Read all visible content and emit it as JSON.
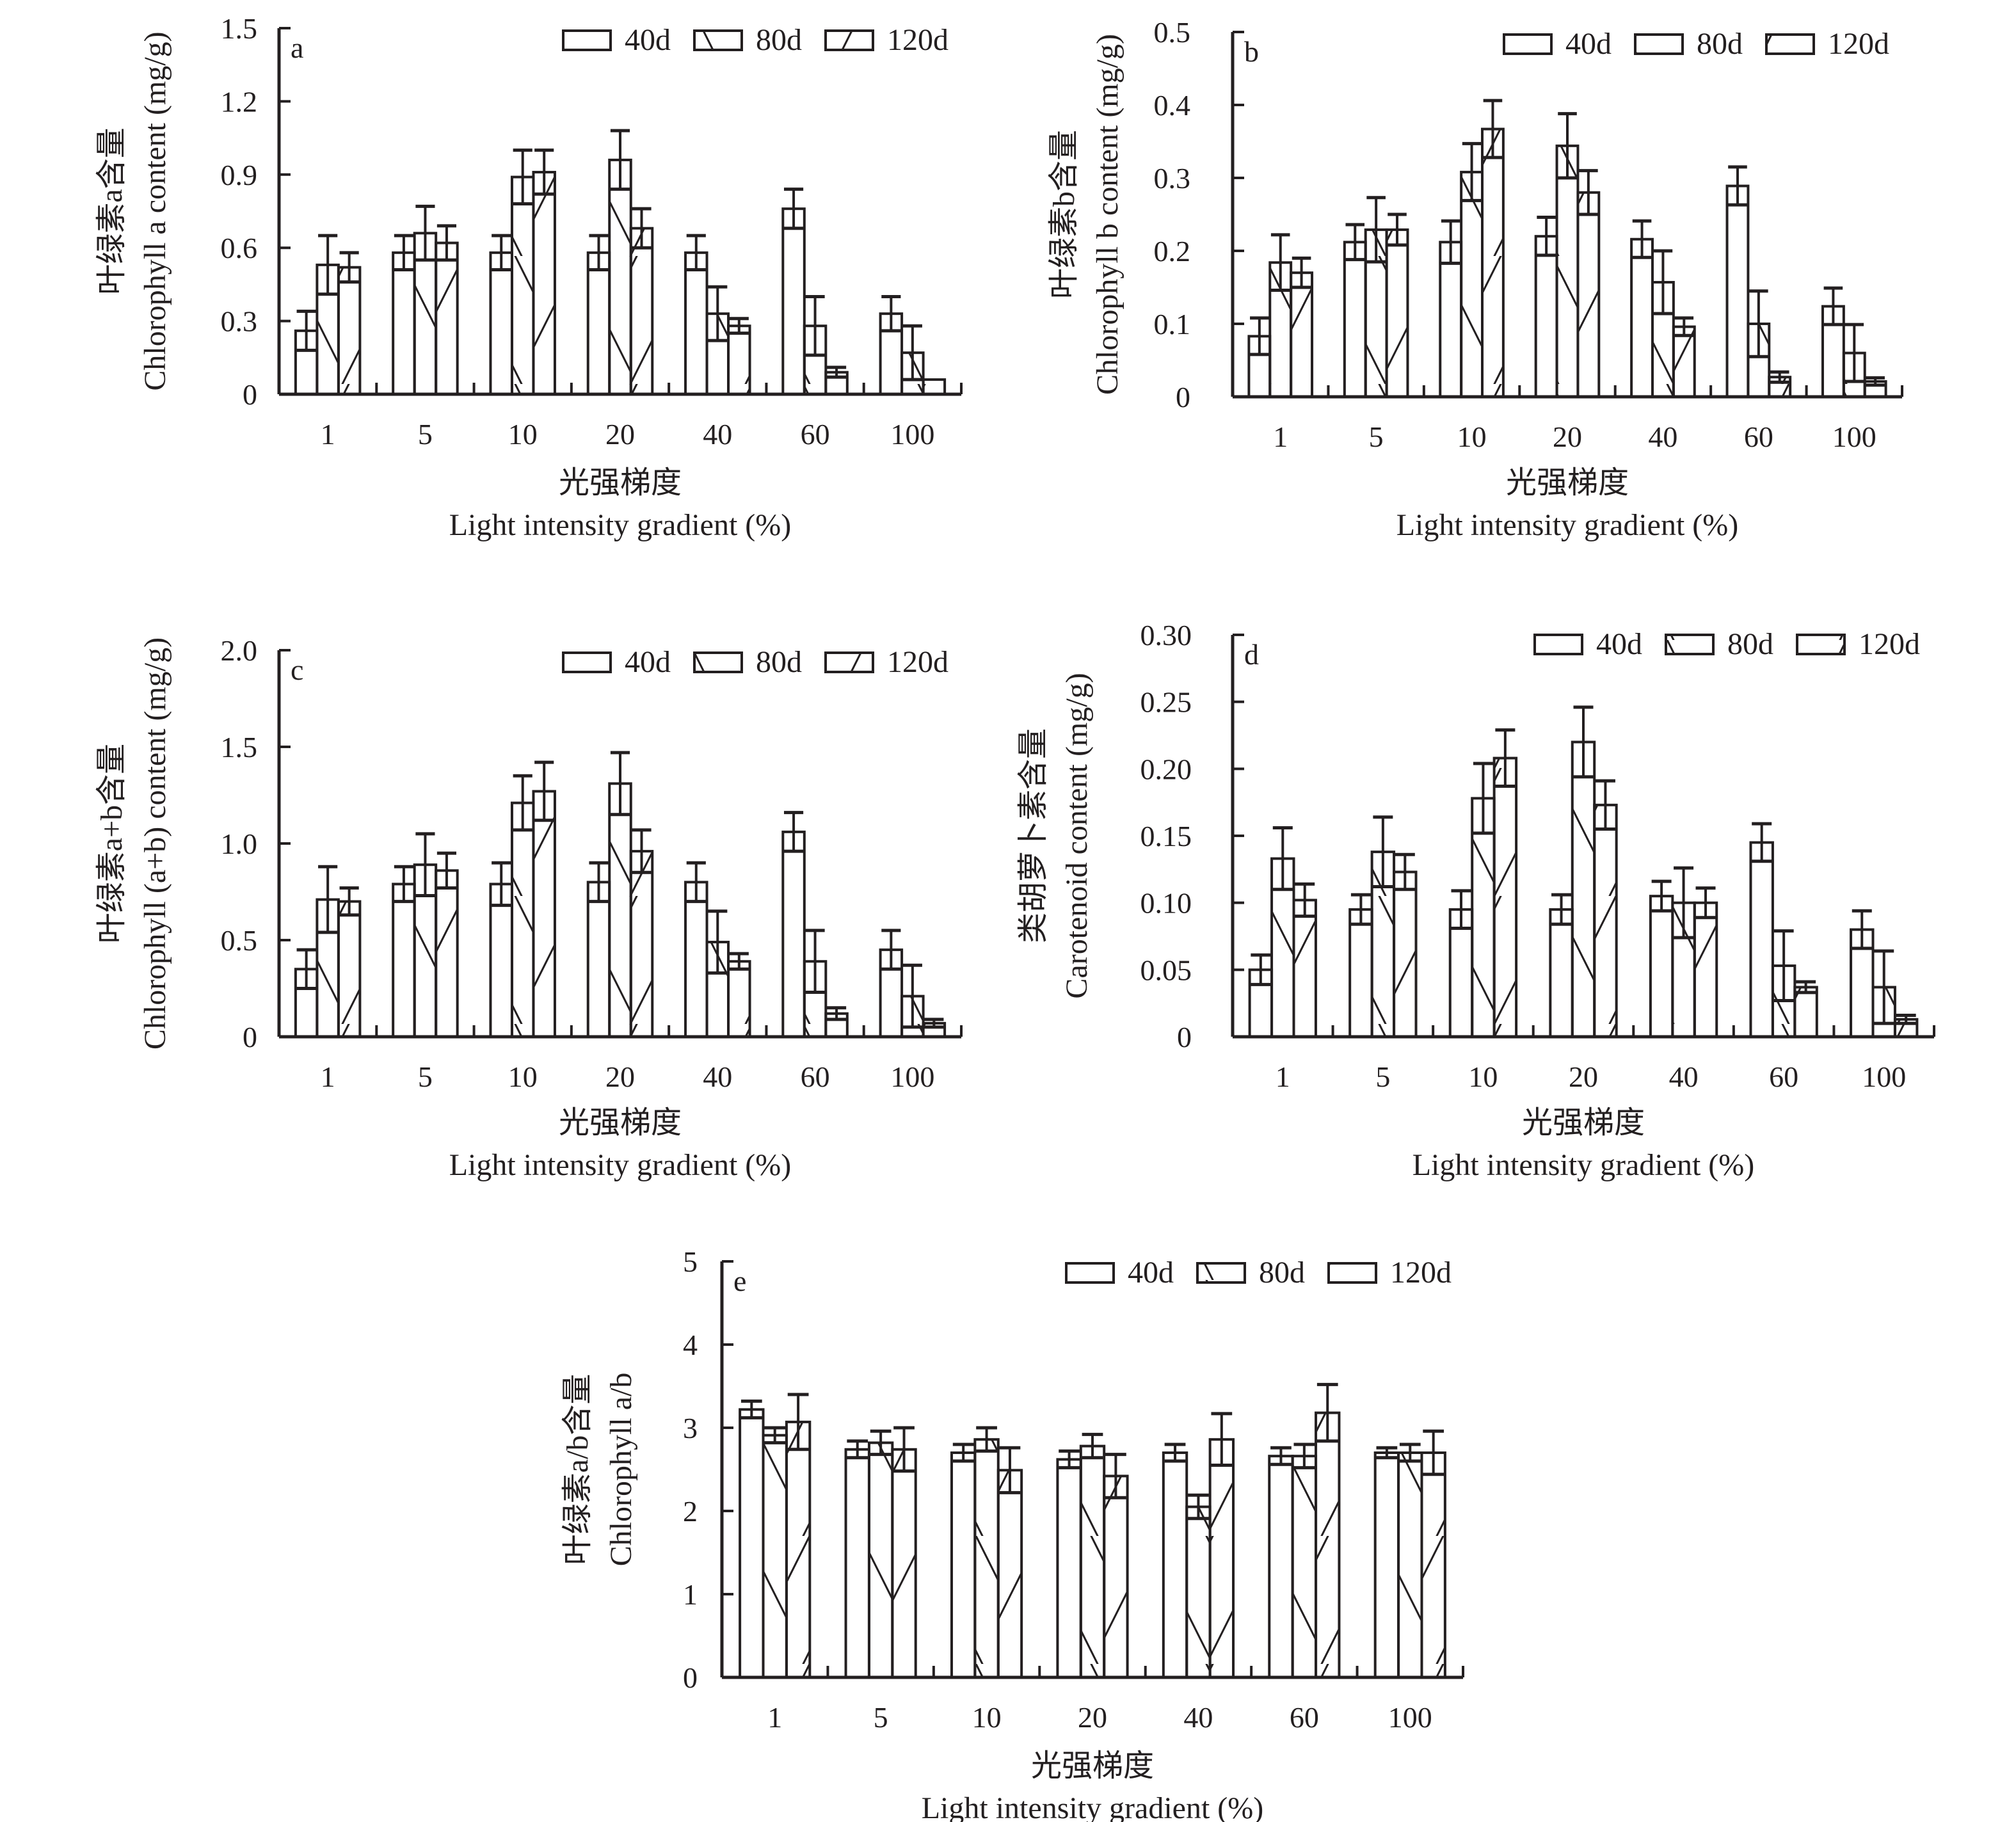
{
  "figure": {
    "legend": [
      {
        "label": "40d",
        "pattern": "none"
      },
      {
        "label": "80d",
        "pattern": "backslash"
      },
      {
        "label": "120d",
        "pattern": "slash"
      }
    ],
    "colors": {
      "ink": "#231f20",
      "background": "#ffffff"
    },
    "xlabel_cn": "光强梯度",
    "xlabel_en": "Light intensity gradient (%)"
  },
  "chart_data": [
    {
      "id": "a",
      "type": "bar",
      "panel_label": "a",
      "ylabel_cn": "叶绿素a含量",
      "ylabel_en": "Chlorophyll a content (mg/g)",
      "xlabel_cn": "光强梯度",
      "xlabel_en": "Light intensity gradient (%)",
      "categories": [
        "1",
        "5",
        "10",
        "20",
        "40",
        "60",
        "100"
      ],
      "ylim": [
        0,
        1.5
      ],
      "yticks": [
        "0",
        "0.3",
        "0.6",
        "0.9",
        "1.2",
        "1.5"
      ],
      "ytick_values": [
        0,
        0.3,
        0.6,
        0.9,
        1.2,
        1.5
      ],
      "legend_position": "top-right",
      "series": [
        {
          "name": "40d",
          "values": [
            0.26,
            0.58,
            0.58,
            0.58,
            0.58,
            0.76,
            0.33
          ],
          "errors": [
            0.08,
            0.07,
            0.07,
            0.07,
            0.07,
            0.08,
            0.07
          ]
        },
        {
          "name": "80d",
          "values": [
            0.53,
            0.66,
            0.89,
            0.96,
            0.33,
            0.28,
            0.17
          ],
          "errors": [
            0.12,
            0.11,
            0.11,
            0.12,
            0.11,
            0.12,
            0.11
          ]
        },
        {
          "name": "120d",
          "values": [
            0.52,
            0.62,
            0.91,
            0.68,
            0.28,
            0.09,
            0.06
          ],
          "errors": [
            0.06,
            0.07,
            0.09,
            0.08,
            0.03,
            0.02,
            0.0
          ]
        }
      ]
    },
    {
      "id": "b",
      "type": "bar",
      "panel_label": "b",
      "ylabel_cn": "叶绿素b含量",
      "ylabel_en": "Chlorophyll b content (mg/g)",
      "xlabel_cn": "光强梯度",
      "xlabel_en": "Light intensity gradient (%)",
      "categories": [
        "1",
        "5",
        "10",
        "20",
        "40",
        "60",
        "100"
      ],
      "ylim": [
        0,
        0.5
      ],
      "yticks": [
        "0",
        "0.1",
        "0.2",
        "0.3",
        "0.4",
        "0.5"
      ],
      "ytick_values": [
        0,
        0.1,
        0.2,
        0.3,
        0.4,
        0.5
      ],
      "legend_position": "top-right",
      "series": [
        {
          "name": "40d",
          "values": [
            0.083,
            0.212,
            0.212,
            0.22,
            0.216,
            0.289,
            0.124
          ],
          "errors": [
            0.025,
            0.024,
            0.029,
            0.026,
            0.025,
            0.026,
            0.025
          ]
        },
        {
          "name": "80d",
          "values": [
            0.184,
            0.229,
            0.308,
            0.344,
            0.157,
            0.1,
            0.06
          ],
          "errors": [
            0.038,
            0.044,
            0.039,
            0.044,
            0.043,
            0.045,
            0.039
          ]
        },
        {
          "name": "120d",
          "values": [
            0.17,
            0.229,
            0.367,
            0.28,
            0.096,
            0.027,
            0.021
          ],
          "errors": [
            0.02,
            0.021,
            0.039,
            0.03,
            0.012,
            0.007,
            0.005
          ]
        }
      ]
    },
    {
      "id": "c",
      "type": "bar",
      "panel_label": "c",
      "ylabel_cn": "叶绿素a+b含量",
      "ylabel_en": "Chlorophyll (a+b) content (mg/g)",
      "xlabel_cn": "光强梯度",
      "xlabel_en": "Light intensity gradient (%)",
      "categories": [
        "1",
        "5",
        "10",
        "20",
        "40",
        "60",
        "100"
      ],
      "ylim": [
        0,
        2.0
      ],
      "yticks": [
        "0",
        "0.5",
        "1.0",
        "1.5",
        "2.0"
      ],
      "ytick_values": [
        0,
        0.5,
        1.0,
        1.5,
        2.0
      ],
      "legend_position": "top-right",
      "series": [
        {
          "name": "40d",
          "values": [
            0.35,
            0.79,
            0.79,
            0.8,
            0.8,
            1.06,
            0.45
          ],
          "errors": [
            0.1,
            0.09,
            0.11,
            0.1,
            0.1,
            0.1,
            0.1
          ]
        },
        {
          "name": "80d",
          "values": [
            0.71,
            0.89,
            1.21,
            1.31,
            0.49,
            0.39,
            0.21
          ],
          "errors": [
            0.17,
            0.16,
            0.14,
            0.16,
            0.16,
            0.16,
            0.16
          ]
        },
        {
          "name": "120d",
          "values": [
            0.7,
            0.86,
            1.27,
            0.96,
            0.39,
            0.12,
            0.07
          ],
          "errors": [
            0.07,
            0.09,
            0.15,
            0.11,
            0.04,
            0.03,
            0.02
          ]
        }
      ]
    },
    {
      "id": "d",
      "type": "bar",
      "panel_label": "d",
      "ylabel_cn": "类胡萝卜素含量",
      "ylabel_en": "Carotenoid content (mg/g)",
      "xlabel_cn": "光强梯度",
      "xlabel_en": "Light intensity gradient (%)",
      "categories": [
        "1",
        "5",
        "10",
        "20",
        "40",
        "60",
        "100"
      ],
      "ylim": [
        0,
        0.3
      ],
      "yticks": [
        "0",
        "0.05",
        "0.10",
        "0.15",
        "0.20",
        "0.25",
        "0.30"
      ],
      "ytick_values": [
        0,
        0.05,
        0.1,
        0.15,
        0.2,
        0.25,
        0.3
      ],
      "legend_position": "top-right",
      "series": [
        {
          "name": "40d",
          "values": [
            0.05,
            0.095,
            0.095,
            0.095,
            0.105,
            0.145,
            0.08
          ],
          "errors": [
            0.011,
            0.011,
            0.014,
            0.011,
            0.011,
            0.014,
            0.014
          ]
        },
        {
          "name": "80d",
          "values": [
            0.133,
            0.138,
            0.178,
            0.22,
            0.1,
            0.053,
            0.037
          ],
          "errors": [
            0.023,
            0.026,
            0.026,
            0.026,
            0.026,
            0.026,
            0.027
          ]
        },
        {
          "name": "120d",
          "values": [
            0.102,
            0.123,
            0.208,
            0.173,
            0.1,
            0.037,
            0.013
          ],
          "errors": [
            0.012,
            0.013,
            0.021,
            0.018,
            0.011,
            0.004,
            0.003
          ]
        }
      ]
    },
    {
      "id": "e",
      "type": "bar",
      "panel_label": "e",
      "ylabel_cn": "叶绿素a/b含量",
      "ylabel_en": "Chlorophyll a/b",
      "xlabel_cn": "光强梯度",
      "xlabel_en": "Light intensity gradient (%)",
      "categories": [
        "1",
        "5",
        "10",
        "20",
        "40",
        "60",
        "100"
      ],
      "ylim": [
        0,
        5
      ],
      "yticks": [
        "0",
        "1",
        "2",
        "3",
        "4",
        "5"
      ],
      "ytick_values": [
        0,
        1,
        2,
        3,
        4,
        5
      ],
      "legend_position": "top-right",
      "series": [
        {
          "name": "40d",
          "values": [
            3.22,
            2.74,
            2.7,
            2.62,
            2.7,
            2.66,
            2.7
          ],
          "errors": [
            0.1,
            0.1,
            0.1,
            0.1,
            0.1,
            0.1,
            0.06
          ]
        },
        {
          "name": "80d",
          "values": [
            2.91,
            2.82,
            2.86,
            2.78,
            2.05,
            2.66,
            2.7
          ],
          "errors": [
            0.09,
            0.14,
            0.14,
            0.14,
            0.14,
            0.14,
            0.1
          ]
        },
        {
          "name": "120d",
          "values": [
            3.07,
            2.74,
            2.49,
            2.42,
            2.86,
            3.18,
            2.7
          ],
          "errors": [
            0.33,
            0.26,
            0.27,
            0.26,
            0.31,
            0.34,
            0.26
          ]
        }
      ]
    }
  ]
}
